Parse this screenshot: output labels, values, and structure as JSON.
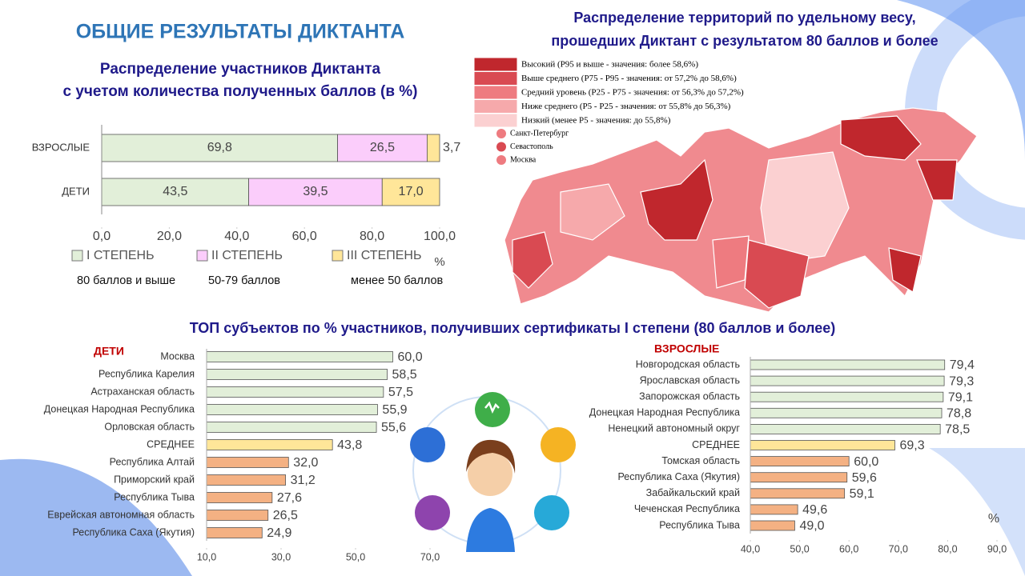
{
  "title": "ОБЩИЕ РЕЗУЛЬТАТЫ ДИКТАНТА",
  "top_title": "ТОП субъектов по % участников, получивших сертификаты I степени (80 баллов и более)",
  "chart_data": [
    {
      "type": "stacked-bar",
      "title": [
        "Распределение участников Диктанта",
        "с учетом количества полученных баллов (в %)"
      ],
      "categories": [
        "ВЗРОСЛЫЕ",
        "ДЕТИ"
      ],
      "series": [
        {
          "name": "I СТЕПЕНЬ",
          "description": "80 баллов и выше",
          "color": "#e2efd9",
          "values": [
            69.8,
            43.5
          ],
          "value_labels": [
            "69,8",
            "43,5"
          ]
        },
        {
          "name": "II СТЕПЕНЬ",
          "description": "50-79 баллов",
          "color": "#fbcdfb",
          "values": [
            26.5,
            39.5
          ],
          "value_labels": [
            "26,5",
            "39,5"
          ]
        },
        {
          "name": "III СТЕПЕНЬ",
          "description": "менее 50 баллов",
          "color": "#ffe699",
          "values": [
            3.7,
            17.0
          ],
          "value_labels": [
            "3,7",
            "17,0"
          ]
        }
      ],
      "xlim": [
        0,
        100
      ],
      "xticks": [
        {
          "value": 0,
          "label": "0,0"
        },
        {
          "value": 20,
          "label": "20,0"
        },
        {
          "value": 40,
          "label": "40,0"
        },
        {
          "value": 60,
          "label": "60,0"
        },
        {
          "value": 80,
          "label": "80,0"
        },
        {
          "value": 100,
          "label": "100,0"
        }
      ],
      "x_unit": "%"
    },
    {
      "type": "bar",
      "title": "ДЕТИ",
      "categories": [
        "Москва",
        "Республика Карелия",
        "Астраханская область",
        "Донецкая Народная Республика",
        "Орловская область",
        "СРЕДНЕЕ",
        "Республика Алтай",
        "Приморский край",
        "Республика Тыва",
        "Еврейская автономная область",
        "Республика Саха (Якутия)"
      ],
      "values": [
        60.0,
        58.5,
        57.5,
        55.9,
        55.6,
        43.8,
        32.0,
        31.2,
        27.6,
        26.5,
        24.9
      ],
      "value_labels": [
        "60,0",
        "58,5",
        "57,5",
        "55,9",
        "55,6",
        "43,8",
        "32,0",
        "31,2",
        "27,6",
        "26,5",
        "24,9"
      ],
      "colors": [
        "#e2efd9",
        "#e2efd9",
        "#e2efd9",
        "#e2efd9",
        "#e2efd9",
        "#ffe699",
        "#f4b183",
        "#f4b183",
        "#f4b183",
        "#f4b183",
        "#f4b183"
      ],
      "xlim": [
        10,
        70
      ],
      "xticks": [
        {
          "value": 10,
          "label": "10,0"
        },
        {
          "value": 30,
          "label": "30,0"
        },
        {
          "value": 50,
          "label": "50,0"
        },
        {
          "value": 70,
          "label": "70,0"
        }
      ]
    },
    {
      "type": "bar",
      "title": "ВЗРОСЛЫЕ",
      "categories": [
        "Новгородская область",
        "Ярославская область",
        "Запорожская область",
        "Донецкая Народная Республика",
        "Ненецкий автономный округ",
        "СРЕДНЕЕ",
        "Томская область",
        "Республика Саха (Якутия)",
        "Забайкальский край",
        "Чеченская Республика",
        "Республика Тыва"
      ],
      "values": [
        79.4,
        79.3,
        79.1,
        78.8,
        78.5,
        69.3,
        60.0,
        59.6,
        59.1,
        49.6,
        49.0
      ],
      "value_labels": [
        "79,4",
        "79,3",
        "79,1",
        "78,8",
        "78,5",
        "69,3",
        "60,0",
        "59,6",
        "59,1",
        "49,6",
        "49,0"
      ],
      "colors": [
        "#e2efd9",
        "#e2efd9",
        "#e2efd9",
        "#e2efd9",
        "#e2efd9",
        "#ffe699",
        "#f4b183",
        "#f4b183",
        "#f4b183",
        "#f4b183",
        "#f4b183"
      ],
      "xlim": [
        40,
        90
      ],
      "xticks": [
        {
          "value": 40,
          "label": "40,0"
        },
        {
          "value": 50,
          "label": "50,0"
        },
        {
          "value": 60,
          "label": "60,0"
        },
        {
          "value": 70,
          "label": "70,0"
        },
        {
          "value": 80,
          "label": "80,0"
        },
        {
          "value": 90,
          "label": "90,0"
        }
      ],
      "x_unit": "%"
    }
  ],
  "map": {
    "title": [
      "Распределение территорий по удельному весу,",
      "прошедших Диктант с результатом 80 баллов и более"
    ],
    "legend": [
      {
        "label": "Высокий (P95 и выше - значения: более 58,6%)",
        "color": "#c0272d"
      },
      {
        "label": "Выше среднего (P75 - P95 - значения: от 57,2% до 58,6%)",
        "color": "#d94a52"
      },
      {
        "label": "Средний уровень (P25 - P75 - значения: от 56,3% до 57,2%)",
        "color": "#ee7b80"
      },
      {
        "label": "Ниже среднего (P5 - P25 - значения: от 55,8% до 56,3%)",
        "color": "#f6a9ab"
      },
      {
        "label": "Низкий (менее P5 - значения: до 55,8%)",
        "color": "#fbd0d1"
      }
    ],
    "cities": [
      {
        "label": "Санкт-Петербург",
        "color": "#ee7b80"
      },
      {
        "label": "Севастополь",
        "color": "#d94a52"
      },
      {
        "label": "Москва",
        "color": "#ee7b80"
      }
    ]
  }
}
